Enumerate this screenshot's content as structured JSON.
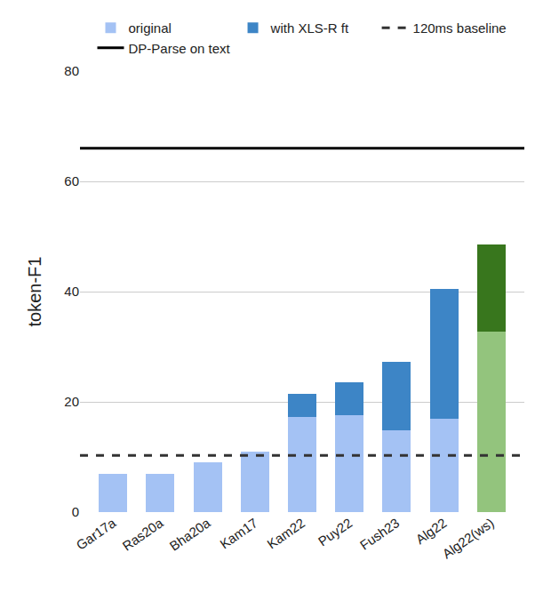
{
  "chart_data": {
    "type": "bar",
    "stacked": true,
    "grid": true,
    "legend": "top",
    "y_label": "token-F1",
    "ylim": [
      0,
      80
    ],
    "yticks": [
      0,
      20,
      40,
      60,
      80
    ],
    "categories": [
      "Gar17a",
      "Ras20a",
      "Bha20a",
      "Kam17",
      "Kam22",
      "Puy22",
      "Fush23",
      "Alg22",
      "Alg22(ws)"
    ],
    "series": [
      {
        "name": "original",
        "color": "#a4c2f4",
        "colors": [
          "#a4c2f4",
          "#a4c2f4",
          "#a4c2f4",
          "#a4c2f4",
          "#a4c2f4",
          "#a4c2f4",
          "#a4c2f4",
          "#a4c2f4",
          "#93c47d"
        ],
        "values": [
          7,
          7,
          9,
          11,
          17.2,
          17.6,
          14.9,
          16.9,
          32.8
        ]
      },
      {
        "name": "with XLS-R ft",
        "color": "#3d85c6",
        "colors": [
          "#3d85c6",
          "#3d85c6",
          "#3d85c6",
          "#3d85c6",
          "#3d85c6",
          "#3d85c6",
          "#3d85c6",
          "#3d85c6",
          "#38761d"
        ],
        "values": [
          null,
          null,
          null,
          null,
          4.3,
          5.9,
          12.3,
          23.6,
          15.7
        ]
      }
    ],
    "reference_lines": [
      {
        "name": "DP-Parse on text",
        "value": 66,
        "color": "#000000",
        "line_style": "solid"
      },
      {
        "name": "120ms baseline",
        "value": 10.3,
        "color": "#333333",
        "line_style": "dash"
      }
    ]
  }
}
